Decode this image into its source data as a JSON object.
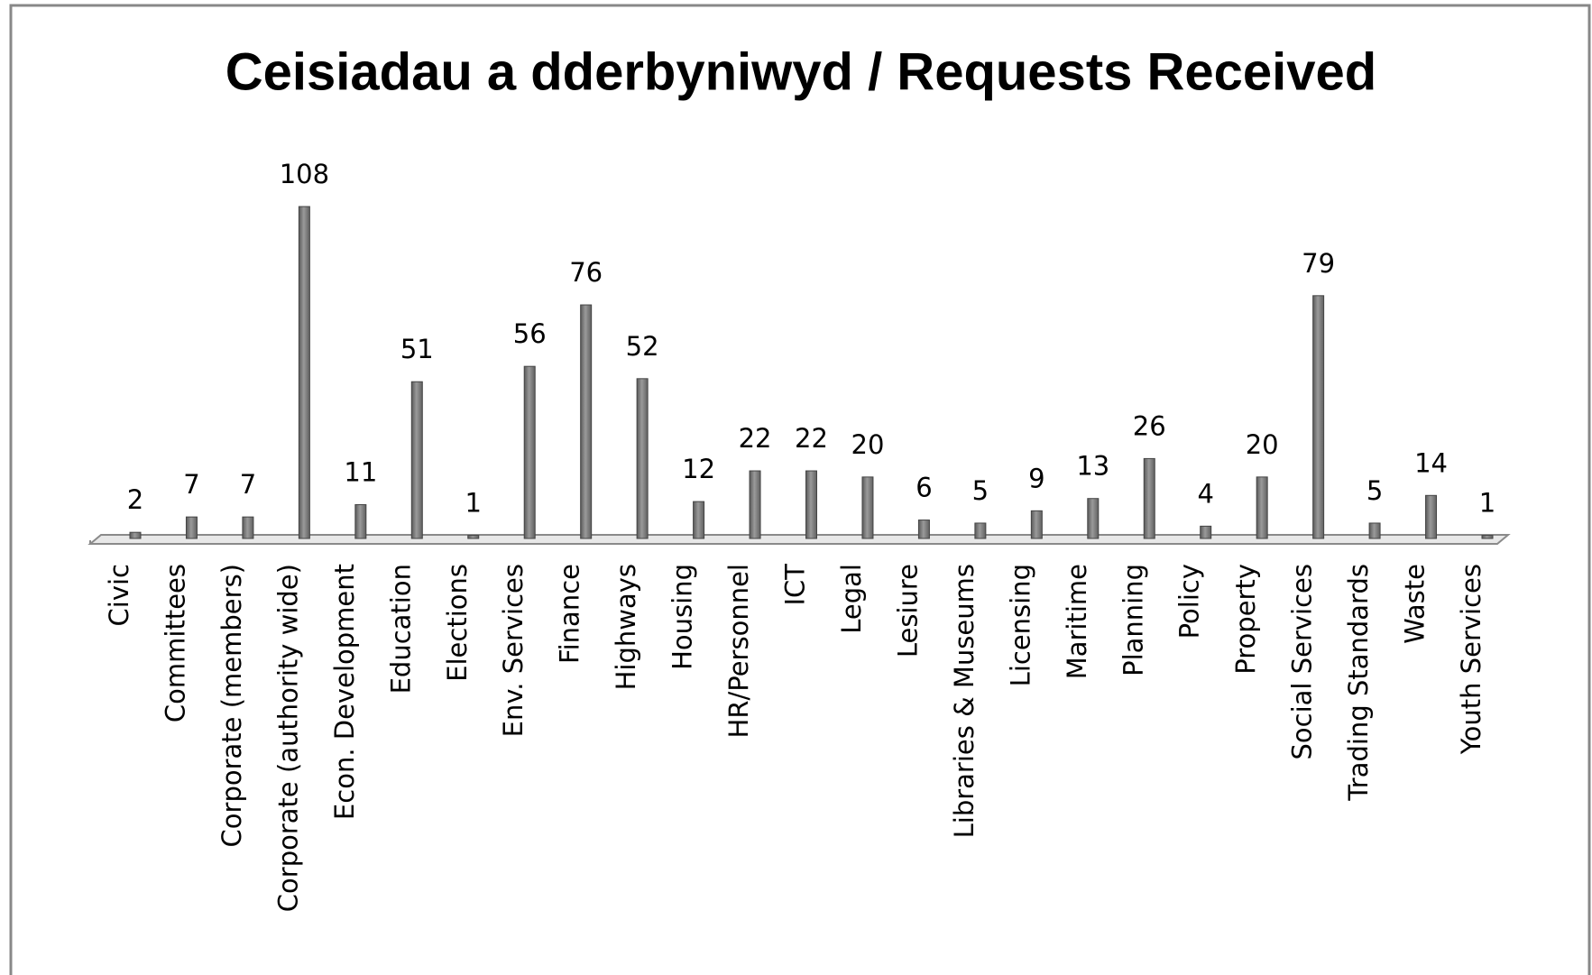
{
  "chart_data": {
    "type": "bar",
    "title": "Ceisiadau a dderbyniwyd / Requests Received",
    "categories": [
      "Civic",
      "Committees",
      "Corporate (members)",
      "Corporate (authority wide)",
      "Econ. Development",
      "Education",
      "Elections",
      "Env. Services",
      "Finance",
      "Highways",
      "Housing",
      "HR/Personnel",
      "ICT",
      "Legal",
      "Lesiure",
      "Libraries & Museums",
      "Licensing",
      "Maritime",
      "Planning",
      "Policy",
      "Property",
      "Social Services",
      "Trading Standards",
      "Waste",
      "Youth Services"
    ],
    "values": [
      2,
      7,
      7,
      108,
      11,
      51,
      1,
      56,
      76,
      52,
      12,
      22,
      22,
      20,
      6,
      5,
      9,
      13,
      26,
      4,
      20,
      79,
      5,
      14,
      1
    ],
    "color": "#7f7f7f"
  }
}
